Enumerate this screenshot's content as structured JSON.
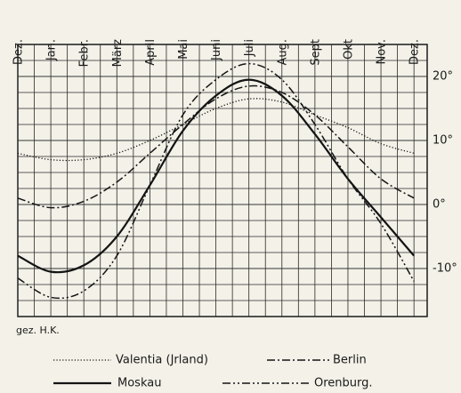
{
  "chart_data": {
    "type": "line",
    "x": [
      0,
      1,
      2,
      3,
      4,
      5,
      6,
      7,
      8,
      9,
      10,
      11,
      12
    ],
    "xlim": [
      0,
      12.4
    ],
    "xticks": [
      {
        "value": 0,
        "label": "Dez."
      },
      {
        "value": 1,
        "label": "Jan."
      },
      {
        "value": 2,
        "label": "Febr."
      },
      {
        "value": 3,
        "label": "März"
      },
      {
        "value": 4,
        "label": "April"
      },
      {
        "value": 5,
        "label": "Mai"
      },
      {
        "value": 6,
        "label": "Juni"
      },
      {
        "value": 7,
        "label": "Juli"
      },
      {
        "value": 8,
        "label": "Aug."
      },
      {
        "value": 9,
        "label": "Sept"
      },
      {
        "value": 10,
        "label": "Okt"
      },
      {
        "value": 11,
        "label": "Nov."
      },
      {
        "value": 12,
        "label": "Dez."
      }
    ],
    "ylim": [
      -17.5,
      25
    ],
    "yticks": [
      {
        "value": 20,
        "label": "20°"
      },
      {
        "value": 10,
        "label": "10°"
      },
      {
        "value": 0,
        "label": "0°"
      },
      {
        "value": -10,
        "label": "-10°"
      }
    ],
    "grid": true,
    "xgrid": [
      0,
      0.5,
      1,
      1.5,
      2,
      2.5,
      3,
      3.5,
      4,
      4.5,
      5,
      5.5,
      6,
      6.5,
      7,
      7.5,
      8,
      8.5,
      9,
      9.5,
      10,
      10.5,
      11,
      11.5,
      12
    ],
    "ygrid": [
      -15,
      -12.5,
      -10,
      -7.5,
      -5,
      -2.5,
      0,
      2.5,
      5,
      7.5,
      10,
      12.5,
      15,
      17.5,
      20,
      22.5
    ],
    "annotation": "gez. H.K.",
    "series": [
      {
        "name": "Valentia (Jrland)",
        "color": "#141414",
        "dash": "dotted",
        "values": [
          8,
          7,
          7,
          8,
          10,
          12.5,
          15,
          16.5,
          16,
          14,
          12,
          9.5,
          8
        ]
      },
      {
        "name": "Berlin",
        "color": "#141414",
        "dash": "dash-dot",
        "values": [
          1,
          -0.5,
          0.5,
          3.5,
          8,
          12.5,
          16.5,
          18.5,
          17.5,
          14,
          9,
          4,
          1
        ]
      },
      {
        "name": "Moskau",
        "color": "#141414",
        "dash": "solid",
        "values": [
          -8,
          -10.5,
          -9.5,
          -5,
          3,
          11.5,
          17,
          19.5,
          17,
          11,
          4,
          -2,
          -8
        ]
      },
      {
        "name": "Orenburg.",
        "color": "#141414",
        "dash": "dash-dot-dot",
        "values": [
          -11.5,
          -14.5,
          -13.5,
          -8,
          3,
          14,
          19.5,
          22,
          19.5,
          12.5,
          4,
          -3,
          -12
        ]
      }
    ]
  }
}
